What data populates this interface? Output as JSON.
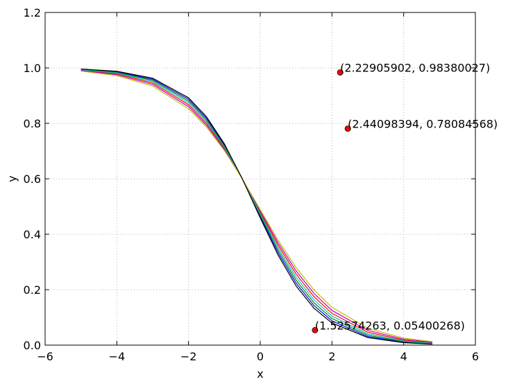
{
  "chart_data": {
    "type": "line",
    "xlabel": "x",
    "ylabel": "y",
    "xlim": [
      -6,
      6
    ],
    "ylim": [
      0,
      1.2
    ],
    "xticks": [
      {
        "value": -6,
        "label": "−6"
      },
      {
        "value": -4,
        "label": "−4"
      },
      {
        "value": -2,
        "label": "−2"
      },
      0,
      2,
      4,
      6
    ],
    "yticks": [
      {
        "value": 0,
        "label": "0.0"
      },
      0.2,
      0.4,
      0.6,
      0.8,
      {
        "value": 1,
        "label": "1.0"
      },
      1.2
    ],
    "grid": true,
    "x": [
      -5,
      -4,
      -3,
      -2,
      -1.5,
      -1,
      -0.5,
      0,
      0.5,
      1,
      1.5,
      2,
      3,
      4,
      4.8
    ],
    "series": [
      {
        "color": "#0000ff",
        "values": [
          0.9953,
          0.986,
          0.9591,
          0.8865,
          0.8183,
          0.7221,
          0.6,
          0.4638,
          0.3329,
          0.2236,
          0.1425,
          0.0875,
          0.0309,
          0.0105,
          0.0044
        ]
      },
      {
        "color": "#008000",
        "values": [
          0.9944,
          0.9839,
          0.955,
          0.8803,
          0.8123,
          0.7181,
          0.6,
          0.4688,
          0.3419,
          0.2341,
          0.1525,
          0.0958,
          0.0354,
          0.0126,
          0.0054
        ]
      },
      {
        "color": "#ff0000",
        "values": [
          0.992,
          0.9788,
          0.9455,
          0.867,
          0.7998,
          0.71,
          0.6,
          0.4788,
          0.3601,
          0.2564,
          0.1744,
          0.1146,
          0.0463,
          0.0179,
          0.0083
        ]
      },
      {
        "color": "#00bfbf",
        "values": [
          0.9933,
          0.9816,
          0.9505,
          0.8738,
          0.8061,
          0.714,
          0.6,
          0.4738,
          0.3509,
          0.2451,
          0.1631,
          0.1048,
          0.0405,
          0.015,
          0.0067
        ]
      },
      {
        "color": "#bf00bf",
        "values": [
          0.9904,
          0.9758,
          0.9402,
          0.86,
          0.7933,
          0.7058,
          0.6,
          0.4838,
          0.3693,
          0.268,
          0.1862,
          0.1251,
          0.0529,
          0.0214,
          0.0102
        ]
      },
      {
        "color": "#bfbf00",
        "values": [
          0.9885,
          0.9722,
          0.9343,
          0.8526,
          0.7867,
          0.7016,
          0.6,
          0.4888,
          0.3787,
          0.2799,
          0.1986,
          0.1365,
          0.0604,
          0.0255,
          0.0126
        ]
      },
      {
        "color": "#000000",
        "values": [
          0.9961,
          0.9878,
          0.9629,
          0.8924,
          0.8242,
          0.7261,
          0.6,
          0.4588,
          0.3241,
          0.2133,
          0.133,
          0.0798,
          0.027,
          0.0088,
          0.0036
        ]
      }
    ],
    "points": {
      "color": "#ff0000",
      "x": [
        1.52574263,
        2.22905902,
        2.44098394
      ],
      "y": [
        0.05400268,
        0.98380027,
        0.78084568
      ],
      "labels": [
        "(1.52574263, 0.05400268)",
        "(2.22905902, 0.98380027)",
        "(2.44098394, 0.78084568)"
      ]
    }
  }
}
